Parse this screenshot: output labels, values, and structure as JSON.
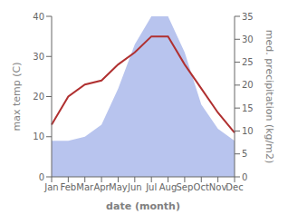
{
  "chart_data": {
    "type": "line",
    "categories": [
      "Jan",
      "Feb",
      "Mar",
      "Apr",
      "May",
      "Jun",
      "Jul",
      "Aug",
      "Sep",
      "Oct",
      "Nov",
      "Dec"
    ],
    "series": [
      {
        "type": "area",
        "color": "#b8c4ee",
        "values": [
          9,
          9,
          10,
          13,
          22,
          33,
          40,
          40,
          31,
          18,
          12,
          9
        ]
      },
      {
        "type": "line",
        "color": "#b03030",
        "values": [
          13,
          20,
          23,
          24,
          28,
          31,
          35,
          35,
          28,
          22,
          16,
          11
        ]
      }
    ],
    "xlabel": "date (month)",
    "ylabel": "max temp (C)",
    "y2label": "med. precipitation (kg/m2)",
    "ylim": [
      0,
      40
    ],
    "yticks": [
      0,
      10,
      20,
      30,
      40
    ],
    "y2lim": [
      0,
      35
    ],
    "y2ticks": [
      0,
      5,
      10,
      15,
      20,
      25,
      30,
      35
    ]
  }
}
